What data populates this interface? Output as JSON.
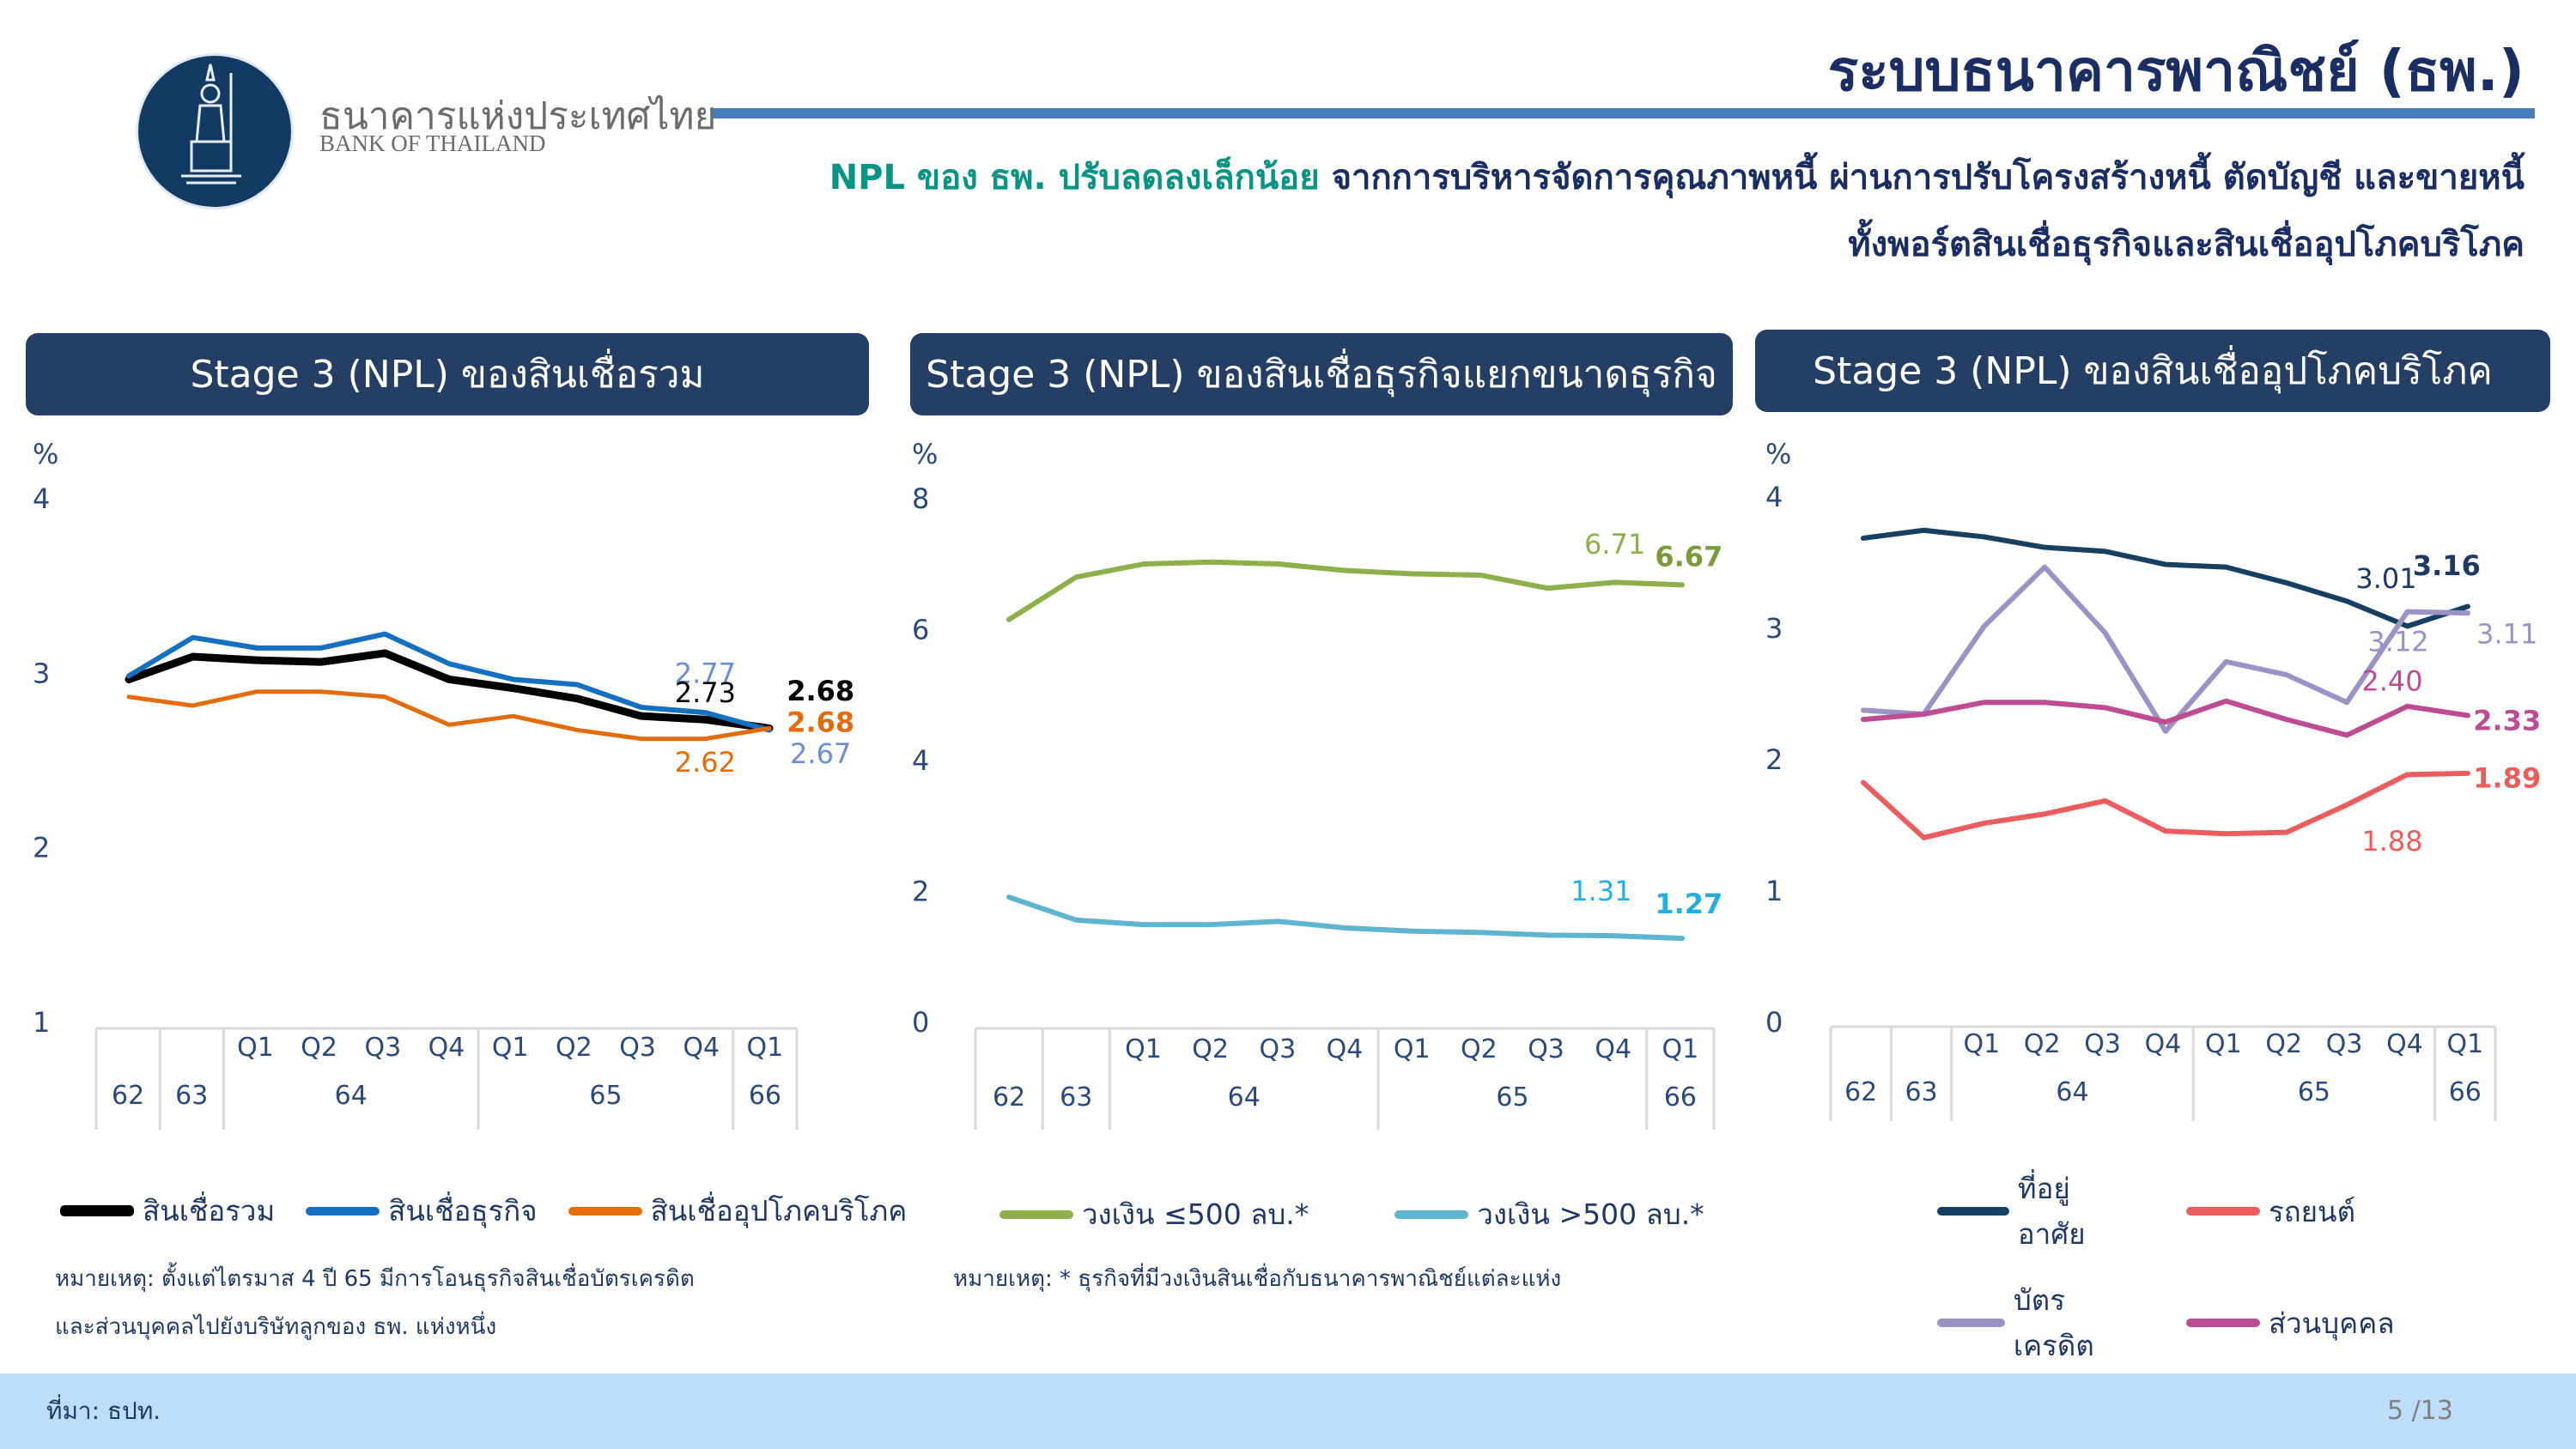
{
  "header": {
    "logo_th": "ธนาคารแห่งประเทศไทย",
    "logo_en": "BANK OF THAILAND",
    "title": "ระบบธนาคารพาณิชย์ (ธพ.)",
    "subtitle_highlight": "NPL ของ ธพ. ปรับลดลงเล็กน้อย",
    "subtitle_rest": " จากการบริหารจัดการคุณภาพหนี้ ผ่านการปรับโครงสร้างหนี้ ตัดบัญชี และขายหนี้",
    "subtitle_line2": "ทั้งพอร์ตสินเชื่อธุรกิจและสินเชื่ออุปโภคบริโภค",
    "accent_color": "#079482",
    "rule_color": "#4a7ebb"
  },
  "panels": [
    {
      "title": "Stage 3 (NPL) ของสินเชื่อรวม",
      "note": [
        "หมายเหตุ: ตั้งแต่ไตรมาส 4 ปี 65 มีการโอนธุรกิจสินเชื่อบัตรเครดิต",
        "และส่วนบุคคลไปยังบริษัทลูกของ ธพ. แห่งหนึ่ง"
      ]
    },
    {
      "title": "Stage 3 (NPL) ของสินเชื่อธุรกิจแยกขนาดธุรกิจ",
      "note": [
        "หมายเหตุ: * ธุรกิจที่มีวงเงินสินเชื่อกับธนาคารพาณิชย์แต่ละแห่ง"
      ]
    },
    {
      "title": "Stage 3 (NPL) ของสินเชื่ออุปโภคบริโภค",
      "note": []
    }
  ],
  "footer": {
    "source": "ที่มา: ธปท.",
    "page": "5 /13"
  },
  "chart_data": [
    {
      "type": "line",
      "title": "Stage 3 (NPL) ของสินเชื่อรวม",
      "ylabel": "%",
      "ylim": [
        1,
        4
      ],
      "yticks": [
        1,
        2,
        3,
        4
      ],
      "categories": [
        "62",
        "63",
        "64 Q1",
        "64 Q2",
        "64 Q3",
        "64 Q4",
        "65 Q1",
        "65 Q2",
        "65 Q3",
        "65 Q4",
        "66 Q1"
      ],
      "x_quarters": [
        "",
        "",
        "Q1",
        "Q2",
        "Q3",
        "Q4",
        "Q1",
        "Q2",
        "Q3",
        "Q4",
        "Q1"
      ],
      "x_years": [
        {
          "label": "62",
          "span": 1
        },
        {
          "label": "63",
          "span": 1
        },
        {
          "label": "64",
          "span": 4
        },
        {
          "label": "65",
          "span": 4
        },
        {
          "label": "66",
          "span": 1
        }
      ],
      "series": [
        {
          "name": "สินเชื่อรวม",
          "color": "#000000",
          "width": 9,
          "values": [
            2.96,
            3.09,
            3.07,
            3.06,
            3.11,
            2.96,
            2.91,
            2.85,
            2.75,
            2.73,
            2.68
          ]
        },
        {
          "name": "สินเชื่อธุรกิจ",
          "color": "#1570c0",
          "width": 6,
          "values": [
            2.98,
            3.2,
            3.14,
            3.14,
            3.22,
            3.05,
            2.96,
            2.93,
            2.8,
            2.77,
            2.67
          ]
        },
        {
          "name": "สินเชื่ออุปโภคบริโภค",
          "color": "#e36c0a",
          "width": 5,
          "values": [
            2.86,
            2.81,
            2.89,
            2.89,
            2.86,
            2.7,
            2.75,
            2.67,
            2.62,
            2.62,
            2.68
          ]
        }
      ],
      "annotations": [
        {
          "text": "2.77",
          "color": "#6b8dd6",
          "x": 9,
          "y": 2.94,
          "bold": false
        },
        {
          "text": "2.73",
          "color": "#000000",
          "x": 9,
          "y": 2.83,
          "bold": false
        },
        {
          "text": "2.62",
          "color": "#e36c0a",
          "x": 9,
          "y": 2.43,
          "bold": false
        },
        {
          "text": "2.68",
          "color": "#000000",
          "x": 10.8,
          "y": 2.84,
          "bold": true
        },
        {
          "text": "2.68",
          "color": "#e36c0a",
          "x": 10.8,
          "y": 2.66,
          "bold": true
        },
        {
          "text": "2.67",
          "color": "#6b8dd6",
          "x": 10.8,
          "y": 2.48,
          "bold": false
        }
      ],
      "legend": "bottom"
    },
    {
      "type": "line",
      "title": "Stage 3 (NPL) ของสินเชื่อธุรกิจแยกขนาดธุรกิจ",
      "ylabel": "%",
      "ylim": [
        0,
        8
      ],
      "yticks": [
        0,
        2,
        4,
        6,
        8
      ],
      "categories": [
        "62",
        "63",
        "64 Q1",
        "64 Q2",
        "64 Q3",
        "64 Q4",
        "65 Q1",
        "65 Q2",
        "65 Q3",
        "65 Q4",
        "66 Q1"
      ],
      "x_quarters": [
        "",
        "",
        "Q1",
        "Q2",
        "Q3",
        "Q4",
        "Q1",
        "Q2",
        "Q3",
        "Q4",
        "Q1"
      ],
      "x_years": [
        {
          "label": "62",
          "span": 1
        },
        {
          "label": "63",
          "span": 1
        },
        {
          "label": "64",
          "span": 4
        },
        {
          "label": "65",
          "span": 4
        },
        {
          "label": "66",
          "span": 1
        }
      ],
      "series": [
        {
          "name": "วงเงิน ≤500 ลบ.*",
          "color": "#8db04a",
          "width": 6,
          "values": [
            6.14,
            6.79,
            6.99,
            7.02,
            6.99,
            6.89,
            6.84,
            6.82,
            6.62,
            6.71,
            6.67
          ]
        },
        {
          "name": "วงเงิน >500 ลบ.*",
          "color": "#5fb4cf",
          "width": 6,
          "values": [
            1.9,
            1.55,
            1.48,
            1.48,
            1.53,
            1.43,
            1.38,
            1.36,
            1.32,
            1.31,
            1.27
          ]
        }
      ],
      "annotations": [
        {
          "text": "6.71",
          "color": "#8db04a",
          "x": 9,
          "y": 7.15,
          "bold": false
        },
        {
          "text": "6.67",
          "color": "#7a9a3c",
          "x": 10.1,
          "y": 6.96,
          "bold": true
        },
        {
          "text": "1.31",
          "color": "#23aee0",
          "x": 8.8,
          "y": 1.85,
          "bold": false
        },
        {
          "text": "1.27",
          "color": "#23aee0",
          "x": 10.1,
          "y": 1.65,
          "bold": true
        }
      ],
      "legend": "bottom"
    },
    {
      "type": "line",
      "title": "Stage 3 (NPL) ของสินเชื่ออุปโภคบริโภค",
      "ylabel": "%",
      "ylim": [
        0,
        4
      ],
      "yticks": [
        0,
        1,
        2,
        3,
        4
      ],
      "categories": [
        "62",
        "63",
        "64 Q1",
        "64 Q2",
        "64 Q3",
        "64 Q4",
        "65 Q1",
        "65 Q2",
        "65 Q3",
        "65 Q4",
        "66 Q1"
      ],
      "x_quarters": [
        "",
        "",
        "Q1",
        "Q2",
        "Q3",
        "Q4",
        "Q1",
        "Q2",
        "Q3",
        "Q4",
        "Q1"
      ],
      "x_years": [
        {
          "label": "62",
          "span": 1
        },
        {
          "label": "63",
          "span": 1
        },
        {
          "label": "64",
          "span": 4
        },
        {
          "label": "65",
          "span": 4
        },
        {
          "label": "66",
          "span": 1
        }
      ],
      "series": [
        {
          "name": "ที่อยู่อาศัย",
          "color": "#173f5f",
          "width": 6,
          "values": [
            3.68,
            3.74,
            3.69,
            3.61,
            3.58,
            3.48,
            3.46,
            3.34,
            3.2,
            3.01,
            3.16
          ]
        },
        {
          "name": "รถยนต์",
          "color": "#eb5c5c",
          "width": 6,
          "values": [
            1.82,
            1.4,
            1.51,
            1.58,
            1.68,
            1.45,
            1.43,
            1.44,
            1.65,
            1.88,
            1.89
          ]
        },
        {
          "name": "บัตรเครดิต",
          "color": "#9b93c6",
          "width": 6,
          "values": [
            2.37,
            2.34,
            3.01,
            3.46,
            2.96,
            2.21,
            2.74,
            2.64,
            2.43,
            3.12,
            3.11
          ]
        },
        {
          "name": "ส่วนบุคคล",
          "color": "#bd4d93",
          "width": 6,
          "values": [
            2.3,
            2.34,
            2.43,
            2.43,
            2.39,
            2.28,
            2.44,
            2.3,
            2.18,
            2.4,
            2.33
          ]
        }
      ],
      "annotations": [
        {
          "text": "3.01",
          "color": "#1f3864",
          "x": 8.65,
          "y": 3.3,
          "bold": false
        },
        {
          "text": "3.16",
          "color": "#1f3864",
          "x": 9.65,
          "y": 3.4,
          "bold": true
        },
        {
          "text": "3.12",
          "color": "#9b93c6",
          "x": 8.85,
          "y": 2.82,
          "bold": false
        },
        {
          "text": "3.11",
          "color": "#9b93c6",
          "x": 10.65,
          "y": 2.88,
          "bold": false
        },
        {
          "text": "2.40",
          "color": "#bd4d93",
          "x": 8.75,
          "y": 2.52,
          "bold": false
        },
        {
          "text": "2.33",
          "color": "#bd4d93",
          "x": 10.65,
          "y": 2.22,
          "bold": true
        },
        {
          "text": "1.89",
          "color": "#eb5c5c",
          "x": 10.65,
          "y": 1.78,
          "bold": true
        },
        {
          "text": "1.88",
          "color": "#eb5c5c",
          "x": 8.75,
          "y": 1.3,
          "bold": false
        }
      ],
      "legend": "bottom-2x2"
    }
  ]
}
